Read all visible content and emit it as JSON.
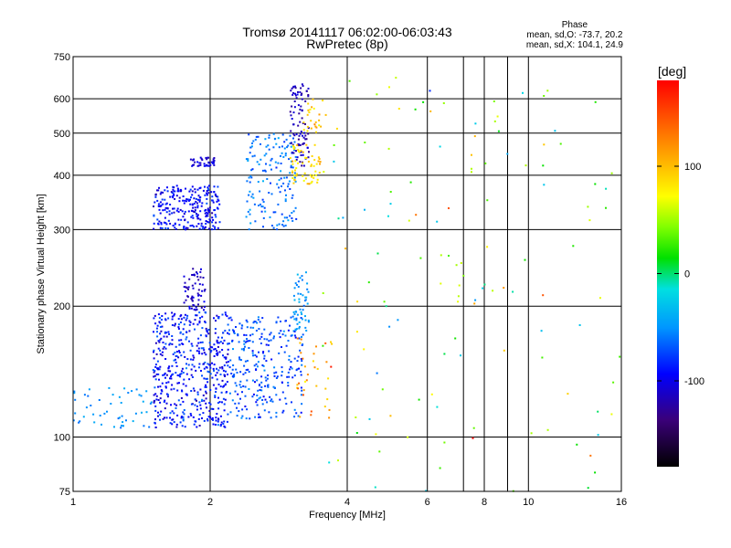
{
  "chart_data": {
    "type": "scatter",
    "title": "Tromsø 20141117 06:02:00-06:03:43",
    "subtitle": "RwPretec (8p)",
    "xlabel": "Frequency [MHz]",
    "ylabel": "Stationary phase Virtual Height [km]",
    "x_scale": "log",
    "y_scale": "log",
    "xlim": [
      1,
      16
    ],
    "ylim": [
      75,
      750
    ],
    "x_ticks": [
      1,
      2,
      4,
      6,
      8,
      10,
      16
    ],
    "y_ticks": [
      75,
      100,
      200,
      300,
      400,
      500,
      600,
      750
    ],
    "x_gridlines": [
      2,
      4,
      6,
      7.2,
      8,
      9,
      10,
      16
    ],
    "y_gridlines": [
      100,
      200,
      300,
      400,
      500,
      600
    ],
    "phase_summary": {
      "heading": "Phase",
      "line1": "mean, sd,O: -73.7, 20.2",
      "line2": "mean, sd,X: 104.1, 24.9"
    },
    "colorbar": {
      "label": "[deg]",
      "ticks": [
        "100",
        "0",
        "-100"
      ],
      "tick_values": [
        100,
        0,
        -100
      ],
      "range": [
        -180,
        180
      ]
    },
    "clusters": [
      {
        "phase_mean": -100,
        "phase_sd": 20,
        "f_min": 1.5,
        "f_max": 2.1,
        "h_min": 300,
        "h_max": 380,
        "count": 250
      },
      {
        "phase_mean": -110,
        "phase_sd": 15,
        "f_min": 1.8,
        "f_max": 2.05,
        "h_min": 420,
        "h_max": 440,
        "count": 40
      },
      {
        "phase_mean": -70,
        "phase_sd": 20,
        "f_min": 2.4,
        "f_max": 3.1,
        "h_min": 300,
        "h_max": 500,
        "count": 160
      },
      {
        "phase_mean": -120,
        "phase_sd": 15,
        "f_min": 3.0,
        "f_max": 3.3,
        "h_min": 420,
        "h_max": 650,
        "count": 90
      },
      {
        "phase_mean": 105,
        "phase_sd": 20,
        "f_min": 3.0,
        "f_max": 3.5,
        "h_min": 380,
        "h_max": 470,
        "count": 60
      },
      {
        "phase_mean": 110,
        "phase_sd": 25,
        "f_min": 3.2,
        "f_max": 3.6,
        "h_min": 500,
        "h_max": 600,
        "count": 25
      },
      {
        "phase_mean": -95,
        "phase_sd": 25,
        "f_min": 1.5,
        "f_max": 2.2,
        "h_min": 105,
        "h_max": 195,
        "count": 500
      },
      {
        "phase_mean": -115,
        "phase_sd": 15,
        "f_min": 1.75,
        "f_max": 1.95,
        "h_min": 195,
        "h_max": 245,
        "count": 60
      },
      {
        "phase_mean": -80,
        "phase_sd": 20,
        "f_min": 2.2,
        "f_max": 3.2,
        "h_min": 110,
        "h_max": 190,
        "count": 280
      },
      {
        "phase_mean": -60,
        "phase_sd": 15,
        "f_min": 3.05,
        "f_max": 3.3,
        "h_min": 175,
        "h_max": 240,
        "count": 50
      },
      {
        "phase_mean": -60,
        "phase_sd": 15,
        "f_min": 1.0,
        "f_max": 1.5,
        "h_min": 105,
        "h_max": 130,
        "count": 50
      },
      {
        "phase_mean": 130,
        "phase_sd": 30,
        "f_min": 3.1,
        "f_max": 3.7,
        "h_min": 110,
        "h_max": 175,
        "count": 35
      },
      {
        "phase_mean": 40,
        "phase_sd": 130,
        "f_min": 3.5,
        "f_max": 16,
        "h_min": 75,
        "h_max": 680,
        "count": 130
      }
    ]
  }
}
